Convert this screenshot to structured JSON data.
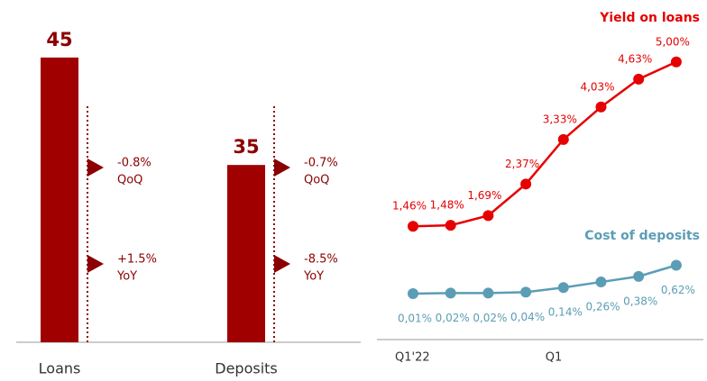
{
  "chart_data": [
    {
      "type": "bar",
      "categories": [
        "Loans",
        "Deposits"
      ],
      "values": [
        45,
        35
      ],
      "color": "#a00000",
      "ylim": [
        18.5,
        47
      ],
      "annotations": [
        [
          {
            "text": "-0.8%",
            "period": "QoQ"
          },
          {
            "text": "+1.5%",
            "period": "YoY"
          }
        ],
        [
          {
            "text": "-0.7%",
            "period": "QoQ"
          },
          {
            "text": "-8.5%",
            "period": "YoY"
          }
        ]
      ]
    },
    {
      "type": "line",
      "categories": [
        "Q1'22",
        null,
        null,
        null,
        "Q1",
        null,
        null,
        null
      ],
      "ylim": [
        -1,
        5.5
      ],
      "series": [
        {
          "name": "Yield on loans",
          "color": "#e60000",
          "values": [
            1.46,
            1.48,
            1.69,
            2.37,
            3.33,
            4.03,
            4.63,
            5.0
          ],
          "value_labels": [
            "1,46%",
            "1,48%",
            "1,69%",
            "2,37%",
            "3,33%",
            "4,03%",
            "4,63%",
            "5,00%"
          ]
        },
        {
          "name": "Cost of deposits",
          "color": "#5b9db5",
          "values": [
            0.01,
            0.02,
            0.02,
            0.04,
            0.14,
            0.26,
            0.38,
            0.62
          ],
          "value_labels": [
            "0,01%",
            "0,02%",
            "0,02%",
            "0,04%",
            "0,14%",
            "0,26%",
            "0,38%",
            "0,62%"
          ]
        }
      ]
    }
  ]
}
